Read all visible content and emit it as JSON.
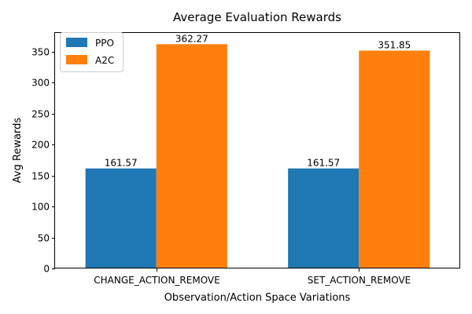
{
  "chart_data": {
    "type": "bar",
    "title": "Average Evaluation Rewards",
    "xlabel": "Observation/Action Space Variations",
    "ylabel": "Avg Rewards",
    "categories": [
      "CHANGE_ACTION_REMOVE",
      "SET_ACTION_REMOVE"
    ],
    "series": [
      {
        "name": "PPO",
        "values": [
          161.57,
          161.57
        ],
        "color": "#1f77b4"
      },
      {
        "name": "A2C",
        "values": [
          362.27,
          351.85
        ],
        "color": "#ff7f0e"
      }
    ],
    "ylim": [
      0,
      380.38
    ],
    "yticks": [
      0,
      50,
      100,
      150,
      200,
      250,
      300,
      350
    ],
    "data_labels": true,
    "grid": false,
    "legend_position": "upper-left"
  }
}
